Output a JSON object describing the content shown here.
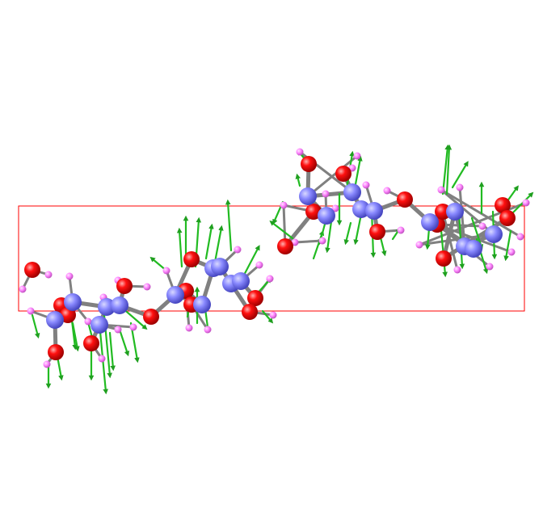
{
  "viewer": {
    "background": "#ffffff",
    "cell_color": "#ff0000",
    "colors": {
      "carbon": "#8080ff",
      "oxygen": "#ff0d0d",
      "hydrogen": "#ff80ff",
      "bond": "#808080",
      "force_vector": "#22bb22"
    }
  }
}
